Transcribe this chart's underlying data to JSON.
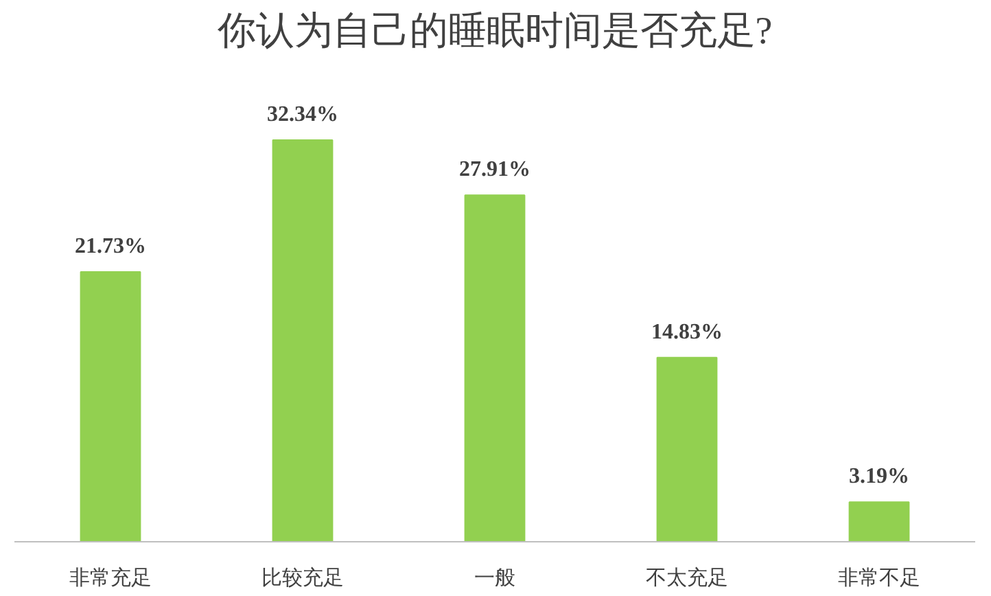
{
  "chart_data": {
    "type": "bar",
    "title": "你认为自己的睡眠时间是否充足?",
    "categories": [
      "非常充足",
      "比较充足",
      "一般",
      "不太充足",
      "非常不足"
    ],
    "values": [
      21.73,
      32.34,
      27.91,
      14.83,
      3.19
    ],
    "value_labels": [
      "21.73%",
      "32.34%",
      "27.91%",
      "14.83%",
      "3.19%"
    ],
    "color": "#92d050",
    "grid": false
  }
}
